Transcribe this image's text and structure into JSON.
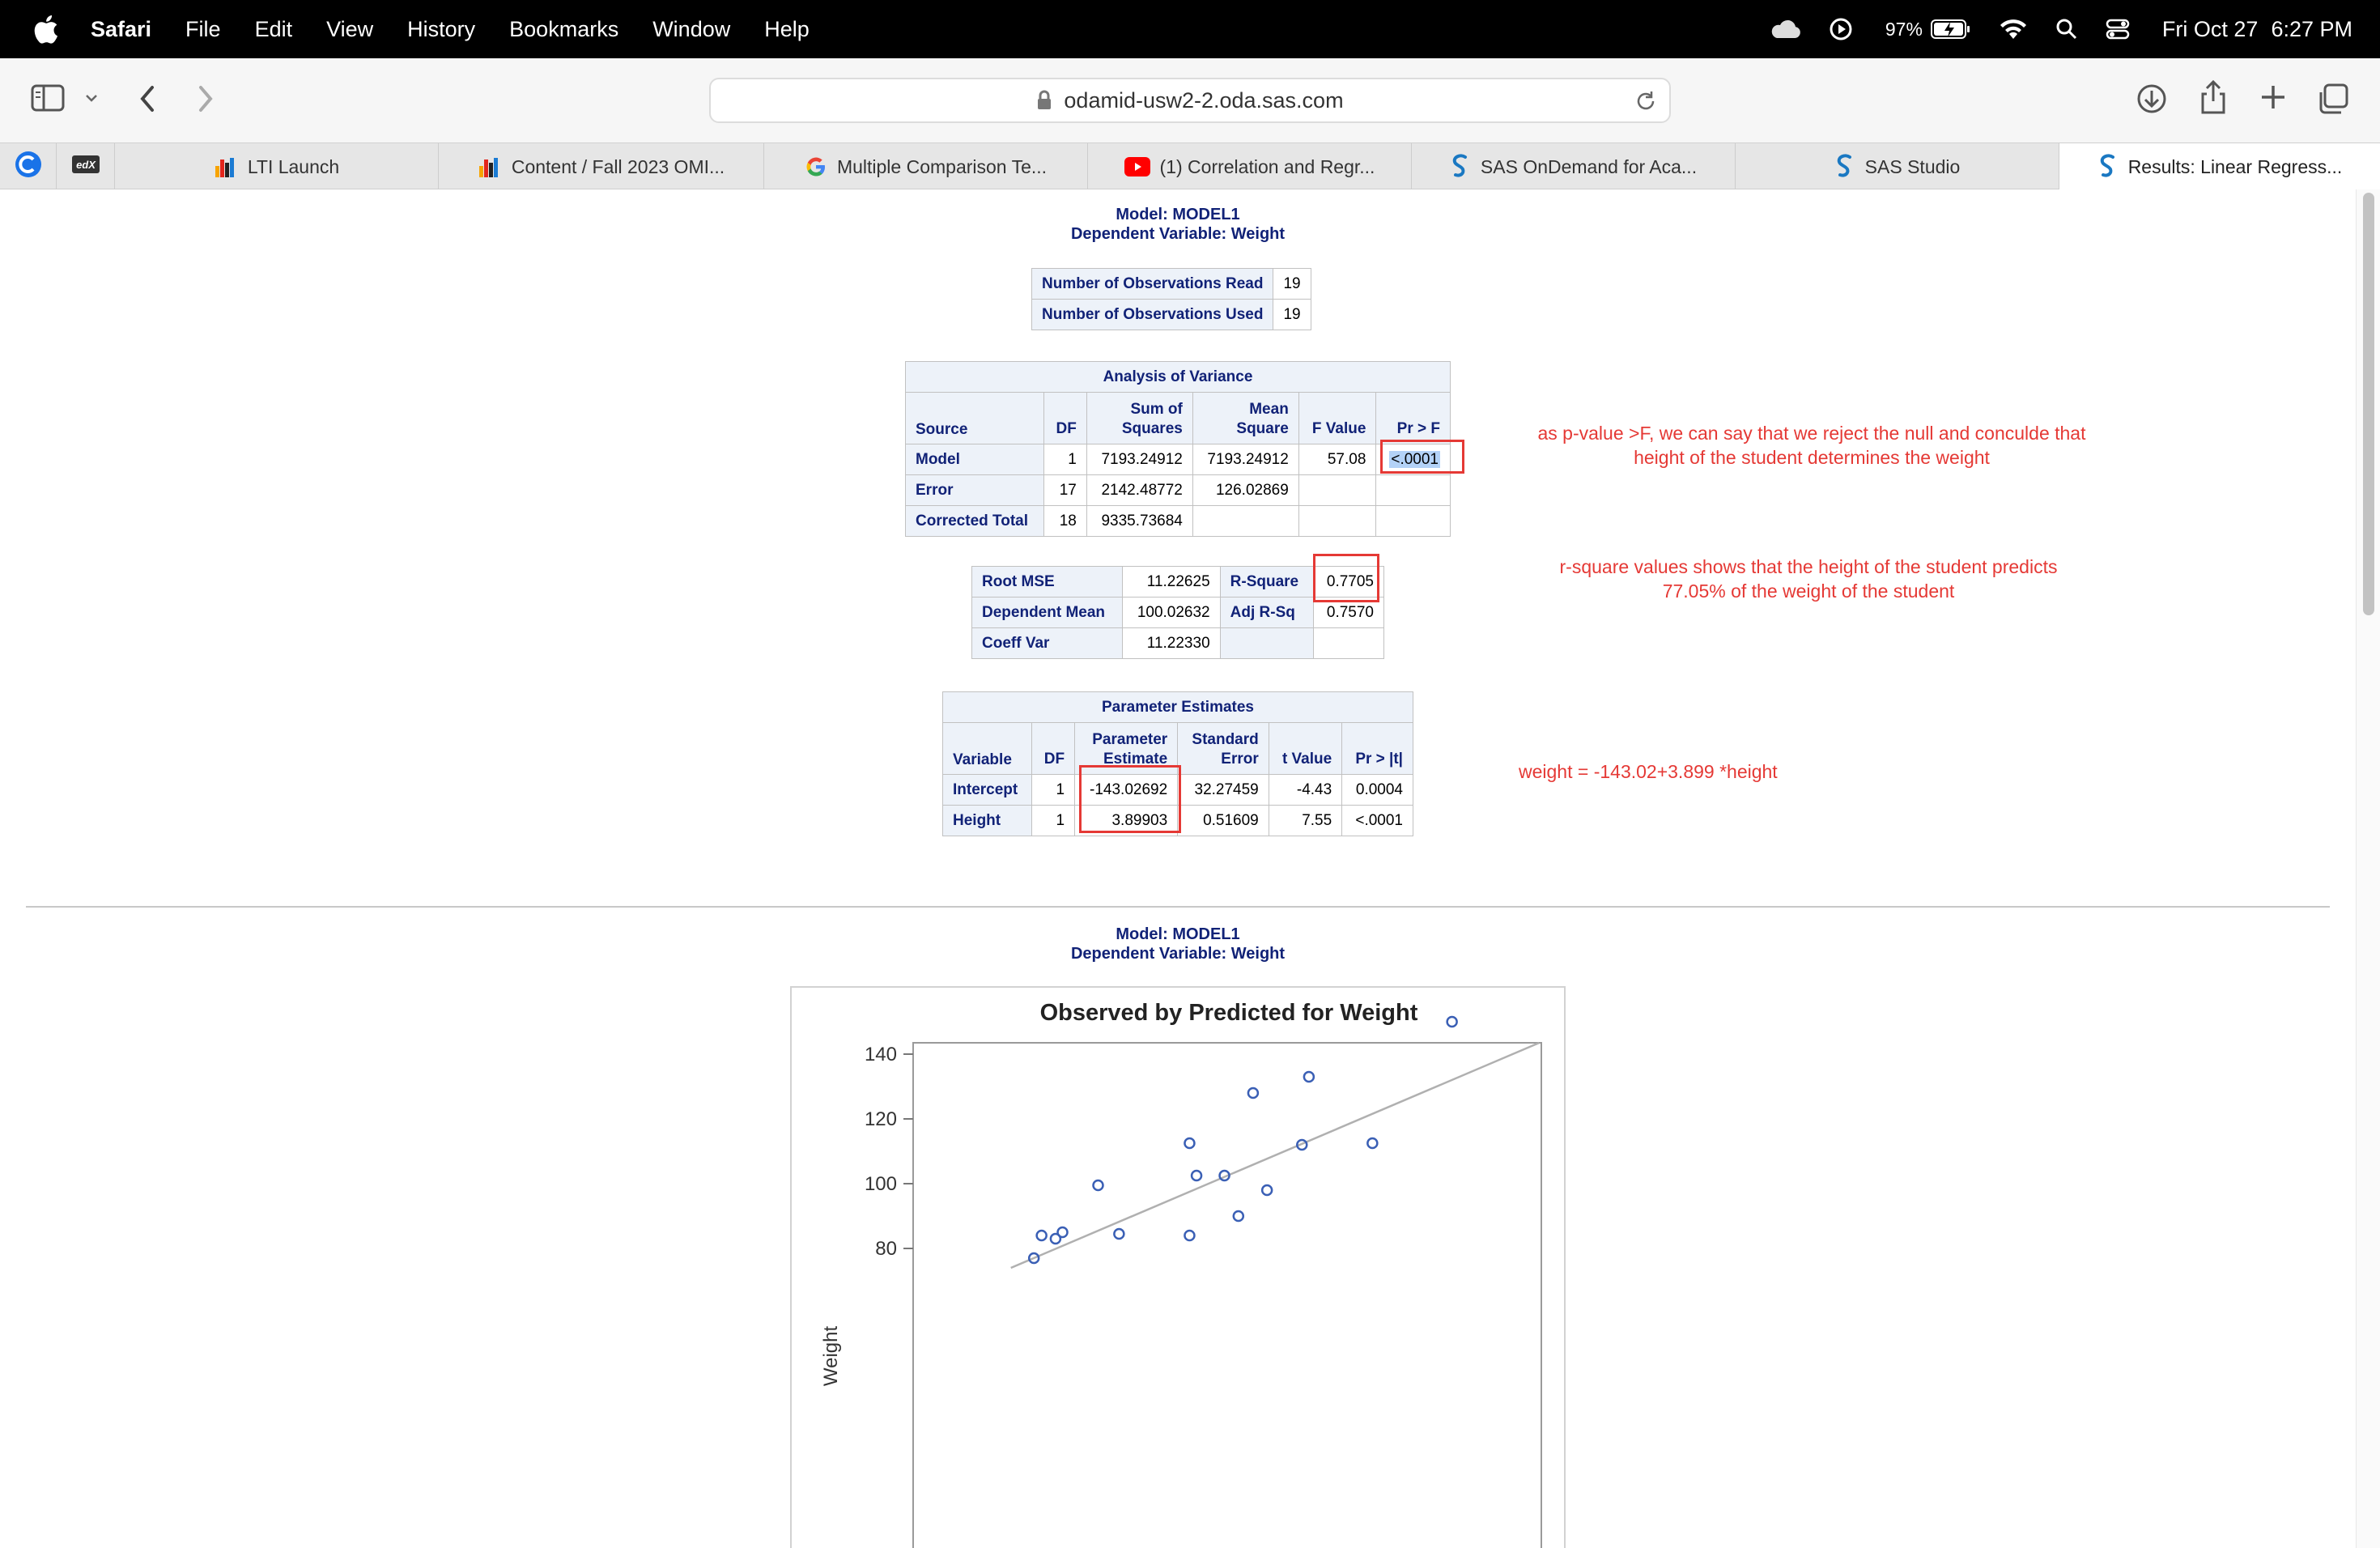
{
  "menubar": {
    "app": "Safari",
    "items": [
      "File",
      "Edit",
      "View",
      "History",
      "Bookmarks",
      "Window",
      "Help"
    ],
    "battery": "97%",
    "date": "Fri Oct 27",
    "time": "6:27 PM"
  },
  "toolbar": {
    "url": "odamid-usw2-2.oda.sas.com"
  },
  "tabs": [
    {
      "label": "",
      "icon": "c-icon"
    },
    {
      "label": "",
      "icon": "edx-icon"
    },
    {
      "label": "LTI Launch",
      "icon": "d2l-icon"
    },
    {
      "label": "Content / Fall 2023 OMI...",
      "icon": "d2l-icon"
    },
    {
      "label": "Multiple Comparison Te...",
      "icon": "google-icon"
    },
    {
      "label": "(1) Correlation and Regr...",
      "icon": "youtube-icon"
    },
    {
      "label": "SAS OnDemand for Aca...",
      "icon": "sas-icon"
    },
    {
      "label": "SAS Studio",
      "icon": "sas-icon"
    },
    {
      "label": "Results: Linear Regress...",
      "icon": "sas-icon",
      "active": true
    }
  ],
  "report": {
    "model_line": "Model: MODEL1",
    "dep_line": "Dependent Variable: Weight",
    "obs": [
      {
        "label": "Number of Observations Read",
        "value": "19"
      },
      {
        "label": "Number of Observations Used",
        "value": "19"
      }
    ],
    "anova": {
      "caption": "Analysis of Variance",
      "headers": [
        "Source",
        "DF",
        "Sum of",
        "Squares",
        "Mean",
        "Square",
        "F Value",
        "Pr > F"
      ],
      "rows": [
        {
          "source": "Model",
          "df": "1",
          "ss": "7193.24912",
          "ms": "7193.24912",
          "f": "57.08",
          "p": "<.0001"
        },
        {
          "source": "Error",
          "df": "17",
          "ss": "2142.48772",
          "ms": "126.02869",
          "f": "",
          "p": ""
        },
        {
          "source": "Corrected Total",
          "df": "18",
          "ss": "9335.73684",
          "ms": "",
          "f": "",
          "p": ""
        }
      ]
    },
    "fit": {
      "rows": [
        {
          "l1": "Root MSE",
          "v1": "11.22625",
          "l2": "R-Square",
          "v2": "0.7705"
        },
        {
          "l1": "Dependent Mean",
          "v1": "100.02632",
          "l2": "Adj R-Sq",
          "v2": "0.7570"
        },
        {
          "l1": "Coeff Var",
          "v1": "11.22330",
          "l2": "",
          "v2": ""
        }
      ]
    },
    "params": {
      "caption": "Parameter Estimates",
      "headers": [
        "Variable",
        "DF",
        "Parameter",
        "Estimate",
        "Standard",
        "Error",
        "t Value",
        "Pr > |t|"
      ],
      "rows": [
        {
          "var": "Intercept",
          "df": "1",
          "est": "-143.02692",
          "se": "32.27459",
          "t": "-4.43",
          "p": "0.0004"
        },
        {
          "var": "Height",
          "df": "1",
          "est": "3.89903",
          "se": "0.51609",
          "t": "7.55",
          "p": "<.0001"
        }
      ]
    }
  },
  "notes": {
    "pvalue": [
      "as p-value >F, we can say that we reject the null and conculde that",
      "height of the student determines the weight"
    ],
    "rsquare": [
      "r-square values shows that the height of the student predicts",
      "77.05% of the weight of the student"
    ],
    "equation": "weight = -143.02+3.899 *height"
  },
  "chart_data": {
    "type": "scatter",
    "title": "Observed by Predicted for Weight",
    "ylabel": "Weight",
    "xlabel": "",
    "ylim": [
      73,
      152
    ],
    "xlim": [
      60,
      150
    ],
    "yticks": [
      80,
      100,
      120,
      140
    ],
    "reference_line": "y = x",
    "points": [
      {
        "x": 77.3,
        "y": 77
      },
      {
        "x": 78.4,
        "y": 84
      },
      {
        "x": 80.4,
        "y": 83
      },
      {
        "x": 81.4,
        "y": 85
      },
      {
        "x": 86.5,
        "y": 99.5
      },
      {
        "x": 89.5,
        "y": 84.5
      },
      {
        "x": 99.6,
        "y": 84
      },
      {
        "x": 99.6,
        "y": 112.5
      },
      {
        "x": 100.6,
        "y": 102.5
      },
      {
        "x": 104.6,
        "y": 102.5
      },
      {
        "x": 106.6,
        "y": 90
      },
      {
        "x": 108.7,
        "y": 128
      },
      {
        "x": 110.7,
        "y": 98
      },
      {
        "x": 115.7,
        "y": 112
      },
      {
        "x": 116.7,
        "y": 133
      },
      {
        "x": 125.8,
        "y": 112.5
      },
      {
        "x": 137.2,
        "y": 150
      }
    ]
  }
}
